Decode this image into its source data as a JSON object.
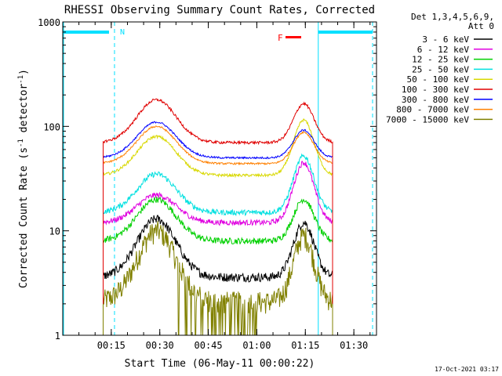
{
  "chart_data": {
    "type": "line",
    "title": "RHESSI Observing Summary Count Rates, Corrected",
    "xlabel": "Start Time (06-May-11 00:00:22)",
    "ylabel": "Corrected Count Rate (s",
    "ylabel_sup1": "-1",
    "ylabel_mid": " detector",
    "ylabel_sup2": "-1",
    "ylabel_end": ")",
    "yscale": "log",
    "ylim": [
      1,
      1000
    ],
    "xlim_min": [
      0,
      97
    ],
    "yticks": [
      {
        "v": 1,
        "label": "1"
      },
      {
        "v": 10,
        "label": "10"
      },
      {
        "v": 100,
        "label": "100"
      },
      {
        "v": 1000,
        "label": "1000"
      }
    ],
    "xticks": [
      {
        "v": 15,
        "label": "00:15"
      },
      {
        "v": 30,
        "label": "00:30"
      },
      {
        "v": 45,
        "label": "00:45"
      },
      {
        "v": 60,
        "label": "01:00"
      },
      {
        "v": 75,
        "label": "01:15"
      },
      {
        "v": 90,
        "label": "01:30"
      }
    ],
    "legend_header": [
      "Det 1,3,4,5,6,9,",
      "Att 0"
    ],
    "legend_position": "right",
    "series": [
      {
        "name": "3 - 6 keV",
        "color": "#000000",
        "base": 3.6,
        "peak1": 13,
        "peak2": 12,
        "noise": 0.1,
        "drop": 2
      },
      {
        "name": "6 - 12 keV",
        "color": "#e000e0",
        "base": 12,
        "peak1": 22,
        "peak2": 45,
        "noise": 0.06,
        "drop": 2
      },
      {
        "name": "12 - 25 keV",
        "color": "#00d000",
        "base": 8,
        "peak1": 20,
        "peak2": 20,
        "noise": 0.07,
        "drop": 2
      },
      {
        "name": "25 - 50 keV",
        "color": "#00e0e0",
        "base": 15,
        "peak1": 35,
        "peak2": 52,
        "noise": 0.06,
        "drop": 2
      },
      {
        "name": "50 - 100 keV",
        "color": "#d8d800",
        "base": 34,
        "peak1": 80,
        "peak2": 115,
        "noise": 0.03,
        "drop": 2
      },
      {
        "name": "100 - 300 keV",
        "color": "#e00000",
        "base": 70,
        "peak1": 180,
        "peak2": 165,
        "noise": 0.03,
        "drop": 2
      },
      {
        "name": "300 - 800 keV",
        "color": "#0000ff",
        "base": 50,
        "peak1": 110,
        "peak2": 92,
        "noise": 0.02,
        "drop": 2
      },
      {
        "name": "800 - 7000 keV",
        "color": "#ff8000",
        "base": 44,
        "peak1": 100,
        "peak2": 88,
        "noise": 0.02,
        "drop": 2
      },
      {
        "name": "7000 - 15000 keV",
        "color": "#808000",
        "base": 2.1,
        "peak1": 10,
        "peak2": 9,
        "noise": 0.25,
        "drop": 1
      }
    ],
    "data_range_minutes": [
      12.5,
      83.5
    ],
    "peak_times_minutes": [
      29,
      74.5
    ],
    "night_intervals_minutes": [
      [
        0,
        16
      ],
      [
        79,
        97
      ]
    ],
    "night_color": "#00e0ff",
    "night_label": "N",
    "flare_label": "F",
    "flare_color": "#ff0000",
    "flare_interval_minutes": [
      73,
      77
    ]
  },
  "footer": {
    "timestamp": "17-Oct-2021 03:17"
  }
}
